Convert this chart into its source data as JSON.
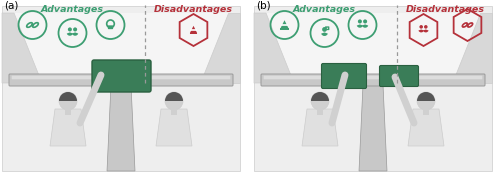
{
  "fig_width": 5.0,
  "fig_height": 1.73,
  "dpi": 100,
  "bg_color": "#ffffff",
  "panel_a_label": "(a)",
  "panel_b_label": "(b)",
  "adv_color": "#3d9e72",
  "disadv_color": "#b5313a",
  "gray_dark": "#555555",
  "gray_mid": "#999999",
  "gray_light": "#cccccc",
  "gray_lighter": "#e0e0e0",
  "gray_body": "#d0d0d0",
  "gray_hair": "#555555",
  "green_screen": "#3a7d58",
  "advantages_label": "Advantages",
  "disadvantages_label": "Disadvantages",
  "pillar_color": "#d8d8d8",
  "dash_color": "#c8c8c8",
  "wall_color": "#eeeeee"
}
